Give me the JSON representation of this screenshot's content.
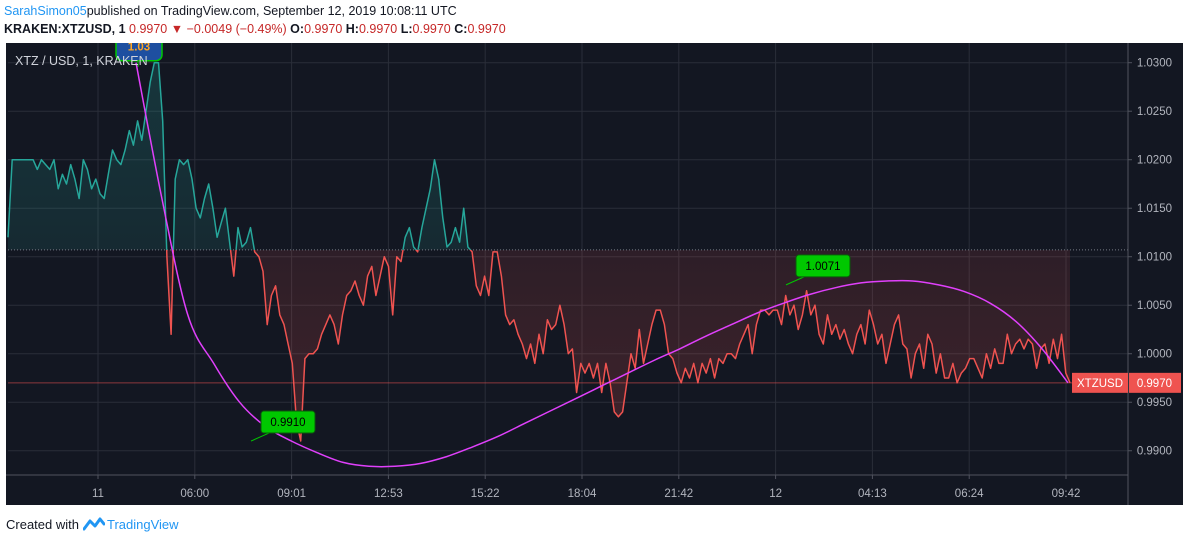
{
  "header": {
    "author": "SarahSimon05",
    "published_text": "published on TradingView.com, September 12, 2019 10:08:11 UTC"
  },
  "ticker": {
    "symbol": "KRAKEN:XTZUSD, 1",
    "last": "0.9970",
    "arrow": "▼",
    "change": "−0.0049 (−0.49%)",
    "o_label": "O:",
    "o_value": "0.9970",
    "h_label": "H:",
    "h_value": "0.9970",
    "l_label": "L:",
    "l_value": "0.9970",
    "c_label": "C:",
    "c_value": "0.9970"
  },
  "footer": {
    "created_with": "Created with",
    "brand": "TradingView"
  },
  "colors": {
    "background": "#131722",
    "up": "#26a69a",
    "down": "#ef5350",
    "arc": "#e040fb",
    "label_green": "#00c800",
    "label_blue": "#1e4fa0",
    "label_blue_text": "#ffa726",
    "grid": "#2a2e39",
    "axis_text": "#b2b5be",
    "price_tag": "#ef5350"
  },
  "chart_data": {
    "type": "line",
    "title": "XTZ / USD, 1, KRAKEN",
    "xlabel": "",
    "ylabel": "",
    "ylim": [
      0.9875,
      1.031
    ],
    "grid": true,
    "y_ticks": [
      "1.0300",
      "1.0250",
      "1.0200",
      "1.0150",
      "1.0100",
      "1.0050",
      "1.0000",
      "0.9950",
      "0.9900"
    ],
    "x_ticks": [
      "11",
      "06:00",
      "09:01",
      "12:53",
      "15:22",
      "18:04",
      "21:42",
      "12",
      "04:13",
      "06:24",
      "09:42"
    ],
    "reference_price": 1.0107,
    "current_price": 0.997,
    "current_label": "XTZUSD",
    "current_value": "0.9970",
    "annotations": [
      {
        "text": "1.03",
        "value": 1.03,
        "style": "blue"
      },
      {
        "text": "0.9910",
        "value": 0.991,
        "style": "green"
      },
      {
        "text": "1.0071",
        "value": 1.0071,
        "style": "green"
      }
    ],
    "series": [
      {
        "values": [
          1.012,
          1.02,
          1.02,
          1.02,
          1.02,
          1.02,
          1.02,
          1.019,
          1.02,
          1.0195,
          1.019,
          1.02,
          1.017,
          1.0185,
          1.0175,
          1.0195,
          1.018,
          1.016,
          1.02,
          1.019,
          1.017,
          1.018,
          1.0165,
          1.016,
          1.0185,
          1.021,
          1.02,
          1.0195,
          1.021,
          1.023,
          1.0215,
          1.024,
          1.022,
          1.025,
          1.028,
          1.03,
          1.03,
          1.024,
          1.01,
          1.002,
          1.018,
          1.02,
          1.0195,
          1.02,
          1.018,
          1.015,
          1.014,
          1.016,
          1.0175,
          1.015,
          1.012,
          1.0135,
          1.015,
          1.0115,
          1.008,
          1.013,
          1.011,
          1.0115,
          1.013,
          1.0105,
          1.01,
          1.0085,
          1.003,
          1.006,
          1.007,
          1.004,
          1.003,
          1.001,
          0.999,
          0.993,
          0.991,
          0.9995,
          1.0,
          1.0,
          1.0005,
          1.002,
          1.003,
          1.004,
          1.003,
          1.001,
          1.004,
          1.006,
          1.0065,
          1.0075,
          1.006,
          1.005,
          1.008,
          1.009,
          1.006,
          1.008,
          1.01,
          1.009,
          1.004,
          1.01,
          1.0095,
          1.012,
          1.013,
          1.011,
          1.0105,
          1.013,
          1.015,
          1.017,
          1.02,
          1.018,
          1.014,
          1.011,
          1.0115,
          1.013,
          1.0115,
          1.015,
          1.011,
          1.0105,
          1.007,
          1.006,
          1.008,
          1.006,
          1.0105,
          1.0105,
          1.008,
          1.004,
          1.003,
          1.0035,
          1.002,
          1.001,
          0.9995,
          1.001,
          0.999,
          1.002,
          1.0,
          1.0035,
          1.0025,
          1.003,
          1.005,
          1.003,
          1.0,
          1.0005,
          0.996,
          0.999,
          0.998,
          0.999,
          0.9975,
          0.999,
          0.996,
          0.999,
          0.997,
          0.994,
          0.9935,
          0.994,
          0.997,
          1.0,
          0.9985,
          1.0025,
          0.999,
          1.001,
          1.003,
          1.0045,
          1.0045,
          1.003,
          1.0,
          0.9995,
          0.998,
          0.997,
          0.9985,
          0.9975,
          0.999,
          0.997,
          0.999,
          0.998,
          0.9995,
          0.9975,
          0.9995,
          0.999,
          1.0,
          1.0,
          0.9995,
          1.001,
          1.002,
          1.003,
          1.0,
          1.003,
          1.0045,
          1.0045,
          1.004,
          1.0045,
          1.0045,
          1.003,
          1.006,
          1.004,
          1.005,
          1.0025,
          1.004,
          1.0065,
          1.004,
          1.005,
          1.002,
          1.001,
          1.004,
          1.002,
          1.003,
          1.0015,
          1.0025,
          1.001,
          1.0,
          1.002,
          1.003,
          1.001,
          1.0045,
          1.003,
          1.001,
          1.002,
          0.999,
          1.001,
          1.003,
          1.004,
          1.001,
          1.0005,
          0.9975,
          1.0,
          1.001,
          0.9985,
          1.002,
          1.001,
          0.998,
          1.0,
          0.9975,
          0.9975,
          0.999,
          0.997,
          0.998,
          0.9985,
          0.9995,
          0.9995,
          0.9985,
          0.9975,
          1.0,
          0.9985,
          1.0005,
          0.999,
          0.999,
          1.002,
          1.0,
          1.001,
          1.0015,
          1.0005,
          1.0015,
          1.001,
          0.9985,
          1.0005,
          1.001,
          0.999,
          1.0015,
          0.9995,
          1.002,
          0.998,
          0.997
        ]
      },
      {
        "values": [
          1.03,
          1.016,
          1.004,
          0.999,
          0.995,
          0.9925,
          0.991,
          0.9898,
          0.9888,
          0.9884,
          0.9884,
          0.9887,
          0.9894,
          0.9904,
          0.9915,
          0.9928,
          0.9941,
          0.9954,
          0.9967,
          0.998,
          0.9993,
          1.0005,
          1.0018,
          1.003,
          1.0042,
          1.0052,
          1.0061,
          1.0068,
          1.0073,
          1.0075,
          1.0075,
          1.0071,
          1.0064,
          1.0052,
          1.0033,
          1.0005,
          0.997
        ]
      }
    ]
  }
}
